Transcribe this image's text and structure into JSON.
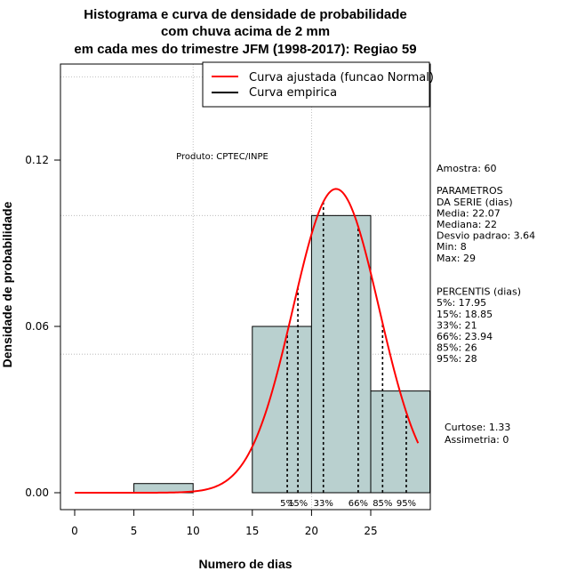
{
  "chart_data": {
    "type": "bar",
    "title_lines": [
      "Histograma e curva de densidade de probabilidade",
      "com chuva acima de 2 mm",
      "em cada mes do trimestre JFM (1998-2017): Regiao 59"
    ],
    "xlabel": "Numero de dias",
    "ylabel": "Densidade de probabilidade",
    "xlim": [
      -1,
      30
    ],
    "ylim": [
      0,
      0.15
    ],
    "x_ticks": [
      0,
      5,
      10,
      15,
      20,
      25
    ],
    "x_tick_labels": [
      "0",
      "5",
      "10",
      "15",
      "20",
      "25"
    ],
    "y_ticks": [
      0.0,
      0.06,
      0.12
    ],
    "y_tick_labels": [
      "0.00",
      "0.06",
      "0.12"
    ],
    "grid_x": [
      10,
      20
    ],
    "grid_y": [
      0.05,
      0.1,
      0.15
    ],
    "bars": [
      {
        "x0": 5,
        "x1": 10,
        "density": 0.0033
      },
      {
        "x0": 15,
        "x1": 20,
        "density": 0.06
      },
      {
        "x0": 20,
        "x1": 25,
        "density": 0.1
      },
      {
        "x0": 25,
        "x1": 30,
        "density": 0.0367
      }
    ],
    "normal_fit": {
      "mean": 22.07,
      "sd": 3.64,
      "x_from": 0,
      "x_to": 29
    },
    "percentile_lines": [
      {
        "label": "5%",
        "value": 17.95
      },
      {
        "label": "15%",
        "value": 18.85
      },
      {
        "label": "33%",
        "value": 21
      },
      {
        "label": "66%",
        "value": 23.94
      },
      {
        "label": "85%",
        "value": 26
      },
      {
        "label": "95%",
        "value": 28
      }
    ],
    "legend": {
      "position": "top-right",
      "entries": [
        {
          "label": "Curva ajustada (funcao Normal)",
          "color": "#ff0000"
        },
        {
          "label": "Curva empirica",
          "color": "#000000"
        }
      ]
    },
    "annotation_producer": "Produto: CPTEC/INPE",
    "side_text": [
      "Amostra: 60",
      "",
      " PARAMETROS",
      "DA SERIE (dias)",
      "  Media: 22.07",
      "  Mediana: 22",
      "  Desvio padrao: 3.64",
      "  Min: 8",
      "  Max: 29",
      "",
      "",
      "PERCENTIS (dias)",
      "  5%: 17.95",
      "  15%: 18.85",
      "  33%: 21",
      "  66%: 23.94",
      "  85%: 26",
      "  95%: 28"
    ],
    "side_text_extra": [
      "Curtose: 1.33",
      "  Assimetria: 0"
    ],
    "colors": {
      "bar_fill": "#b9d0cf",
      "curve": "#ff0000",
      "grid": "#b0b0b0"
    }
  }
}
